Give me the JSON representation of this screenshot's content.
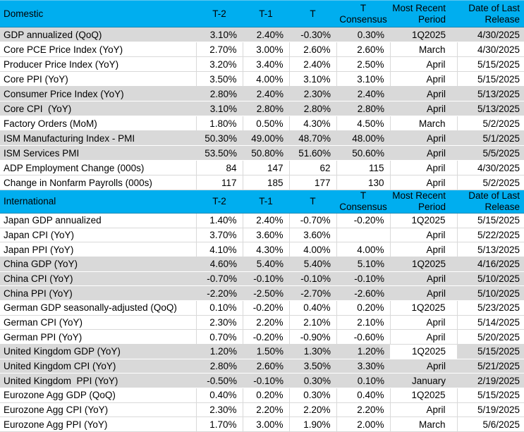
{
  "colors": {
    "section_header_bg": "#00AEEF",
    "shaded_row_bg": "#D9D9D9",
    "grid_line": "#D9D9D9",
    "text": "#000000"
  },
  "table": {
    "header_labels": {
      "t2": "T-2",
      "t1": "T-1",
      "t": "T",
      "consensus": "T\nConsensus",
      "period": "Most Recent\nPeriod",
      "date": "Date of Last\nRelease"
    }
  },
  "sections": [
    {
      "title": "Domestic",
      "rows": [
        {
          "label": "GDP annualized (QoQ)",
          "values": [
            "3.10%",
            "2.40%",
            "-0.30%",
            "0.30%",
            "1Q2025",
            "4/30/2025"
          ],
          "shaded": true
        },
        {
          "label": "Core PCE Price Index (YoY)",
          "values": [
            "2.70%",
            "3.00%",
            "2.60%",
            "2.60%",
            "March",
            "4/30/2025"
          ],
          "shaded": false
        },
        {
          "label": "Producer Price Index (YoY)",
          "values": [
            "3.20%",
            "3.40%",
            "2.40%",
            "2.50%",
            "April",
            "5/15/2025"
          ],
          "shaded": false
        },
        {
          "label": "Core PPI (YoY)",
          "values": [
            "3.50%",
            "4.00%",
            "3.10%",
            "3.10%",
            "April",
            "5/15/2025"
          ],
          "shaded": false
        },
        {
          "label": "Consumer Price Index (YoY)",
          "values": [
            "2.80%",
            "2.40%",
            "2.30%",
            "2.40%",
            "April",
            "5/13/2025"
          ],
          "shaded": true
        },
        {
          "label": "Core CPI  (YoY)",
          "values": [
            "3.10%",
            "2.80%",
            "2.80%",
            "2.80%",
            "April",
            "5/13/2025"
          ],
          "shaded": true
        },
        {
          "label": "Factory Orders (MoM)",
          "values": [
            "1.80%",
            "0.50%",
            "4.30%",
            "4.50%",
            "March",
            "5/2/2025"
          ],
          "shaded": false
        },
        {
          "label": "ISM Manufacturing Index - PMI",
          "values": [
            "50.30%",
            "49.00%",
            "48.70%",
            "48.00%",
            "April",
            "5/1/2025"
          ],
          "shaded": true
        },
        {
          "label": "ISM Services PMI",
          "values": [
            "53.50%",
            "50.80%",
            "51.60%",
            "50.60%",
            "April",
            "5/5/2025"
          ],
          "shaded": true
        },
        {
          "label": "ADP Employment Change (000s)",
          "values": [
            "84",
            "147",
            "62",
            "115",
            "April",
            "4/30/2025"
          ],
          "shaded": false
        },
        {
          "label": "Change in Nonfarm Payrolls (000s)",
          "values": [
            "117",
            "185",
            "177",
            "130",
            "April",
            "5/2/2025"
          ],
          "shaded": false
        }
      ]
    },
    {
      "title": "International",
      "rows": [
        {
          "label": "Japan GDP annualized",
          "values": [
            "1.40%",
            "2.40%",
            "-0.70%",
            "-0.20%",
            "1Q2025",
            "5/15/2025"
          ],
          "shaded": false
        },
        {
          "label": "Japan CPI (YoY)",
          "values": [
            "3.70%",
            "3.60%",
            "3.60%",
            "",
            "April",
            "5/22/2025"
          ],
          "shaded": false
        },
        {
          "label": "Japan PPI (YoY)",
          "values": [
            "4.10%",
            "4.30%",
            "4.00%",
            "4.00%",
            "April",
            "5/13/2025"
          ],
          "shaded": false
        },
        {
          "label": "China GDP (YoY)",
          "values": [
            "4.60%",
            "5.40%",
            "5.40%",
            "5.10%",
            "1Q2025",
            "4/16/2025"
          ],
          "shaded": true
        },
        {
          "label": "China CPI (YoY)",
          "values": [
            "-0.70%",
            "-0.10%",
            "-0.10%",
            "-0.10%",
            "April",
            "5/10/2025"
          ],
          "shaded": true
        },
        {
          "label": "China PPI (YoY)",
          "values": [
            "-2.20%",
            "-2.50%",
            "-2.70%",
            "-2.60%",
            "April",
            "5/10/2025"
          ],
          "shaded": true
        },
        {
          "label": "German GDP seasonally-adjusted (QoQ)",
          "values": [
            "0.10%",
            "-0.20%",
            "0.40%",
            "0.20%",
            "1Q2025",
            "5/23/2025"
          ],
          "shaded": false
        },
        {
          "label": "German CPI (YoY)",
          "values": [
            "2.30%",
            "2.20%",
            "2.10%",
            "2.10%",
            "April",
            "5/14/2025"
          ],
          "shaded": false
        },
        {
          "label": "German PPI (YoY)",
          "values": [
            "0.70%",
            "-0.20%",
            "-0.90%",
            "-0.60%",
            "April",
            "5/20/2025"
          ],
          "shaded": false
        },
        {
          "label": "United Kingdom GDP (YoY)",
          "values": [
            "1.20%",
            "1.50%",
            "1.30%",
            "1.20%",
            "1Q2025",
            "5/15/2025"
          ],
          "shaded": true,
          "period_cell_white": true
        },
        {
          "label": "United Kingdom CPI (YoY)",
          "values": [
            "2.80%",
            "2.60%",
            "3.50%",
            "3.30%",
            "April",
            "5/21/2025"
          ],
          "shaded": true
        },
        {
          "label": "United Kingdom  PPI (YoY)",
          "values": [
            "-0.50%",
            "-0.10%",
            "0.30%",
            "0.10%",
            "January",
            "2/19/2025"
          ],
          "shaded": true
        },
        {
          "label": "Eurozone Agg GDP (QoQ)",
          "values": [
            "0.40%",
            "0.20%",
            "0.30%",
            "0.40%",
            "1Q2025",
            "5/15/2025"
          ],
          "shaded": false
        },
        {
          "label": "Eurozone Agg CPI (YoY)",
          "values": [
            "2.30%",
            "2.20%",
            "2.20%",
            "2.20%",
            "April",
            "5/19/2025"
          ],
          "shaded": false
        },
        {
          "label": "Eurozone Agg PPI (YoY)",
          "values": [
            "1.70%",
            "3.00%",
            "1.90%",
            "2.00%",
            "March",
            "5/6/2025"
          ],
          "shaded": false
        }
      ]
    }
  ]
}
